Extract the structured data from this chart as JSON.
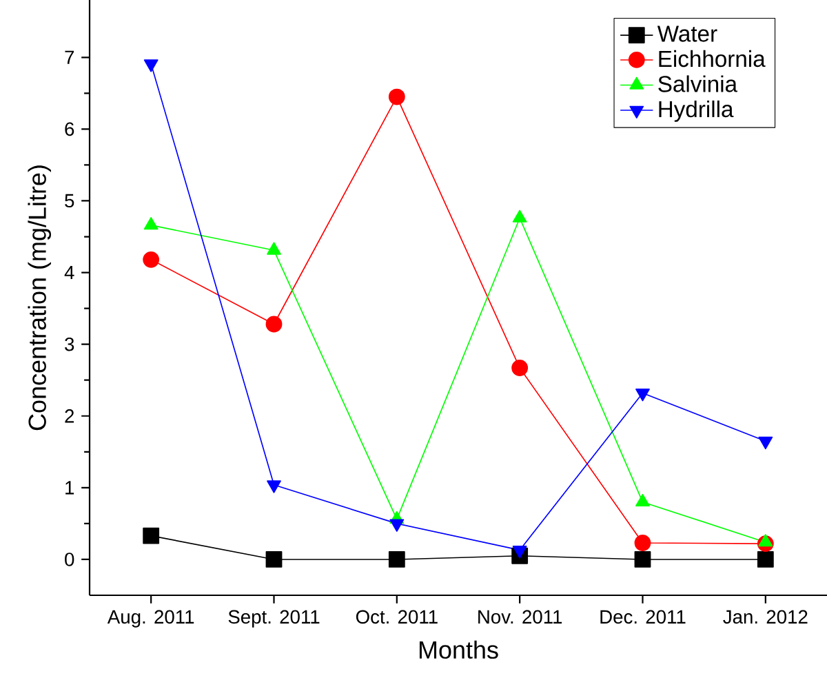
{
  "chart_data": {
    "type": "line",
    "xlabel": "Months",
    "ylabel": "Concentration (mg/Litre)",
    "categories": [
      "Aug. 2011",
      "Sept. 2011",
      "Oct. 2011",
      "Nov. 2011",
      "Dec. 2011",
      "Jan. 2012"
    ],
    "series": [
      {
        "name": "Water",
        "color": "#000000",
        "marker": "square",
        "values": [
          0.33,
          0,
          0,
          0.05,
          0,
          0
        ]
      },
      {
        "name": "Eichhornia",
        "color": "#ff0000",
        "marker": "circle",
        "values": [
          4.18,
          3.28,
          6.45,
          2.67,
          0.23,
          0.22
        ]
      },
      {
        "name": "Salvinia",
        "color": "#00ff00",
        "marker": "triangle",
        "values": [
          4.66,
          4.31,
          0.56,
          4.76,
          0.8,
          0.24
        ]
      },
      {
        "name": "Hydrilla",
        "color": "#0000ff",
        "marker": "triangle-down",
        "values": [
          6.91,
          1.04,
          0.5,
          0.13,
          2.32,
          1.65
        ]
      }
    ],
    "ylim": [
      -0.5,
      7.8
    ],
    "yticks": [
      0,
      1,
      2,
      3,
      4,
      5,
      6,
      7
    ],
    "grid": false,
    "legend": "top right"
  }
}
